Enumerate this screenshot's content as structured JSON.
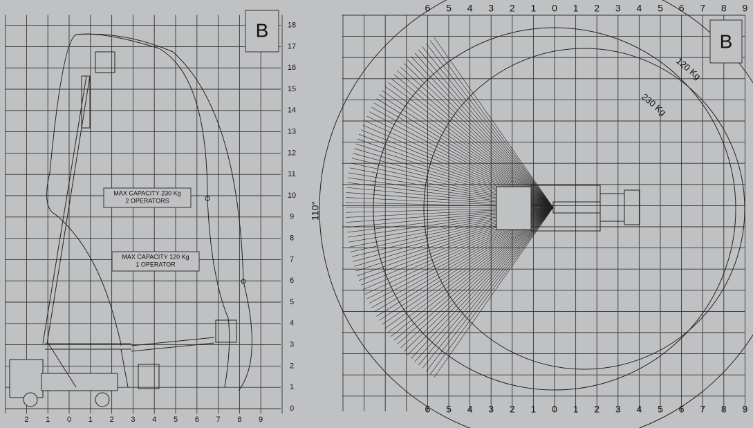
{
  "left": {
    "badge": "B",
    "y_labels": [
      "0",
      "1",
      "2",
      "3",
      "4",
      "5",
      "6",
      "7",
      "8",
      "9",
      "10",
      "11",
      "12",
      "13",
      "14",
      "15",
      "16",
      "17",
      "18"
    ],
    "x_labels": [
      "2",
      "1",
      "0",
      "1",
      "2",
      "3",
      "4",
      "5",
      "6",
      "7",
      "8",
      "9"
    ],
    "capacity_230": {
      "line1": "MAX  CAPACITY 230 Kg",
      "line2": "2 OPERATORS"
    },
    "capacity_120": {
      "line1": "MAX  CAPACITY 120 Kg",
      "line2": "1 OPERATOR"
    }
  },
  "right": {
    "badge": "B",
    "angle": "110°",
    "top_labels": [
      "6",
      "5",
      "4",
      "3",
      "2",
      "1",
      "0",
      "1",
      "2",
      "3",
      "4",
      "5",
      "6",
      "7",
      "8",
      "9"
    ],
    "bottom_labels": [
      "6",
      "5",
      "4",
      "3",
      "2",
      "1",
      "0",
      "1",
      "2",
      "3",
      "4",
      "5",
      "6",
      "7",
      "8",
      "9"
    ],
    "ring_120": "120 Kg",
    "ring_230": "230 Kg"
  }
}
